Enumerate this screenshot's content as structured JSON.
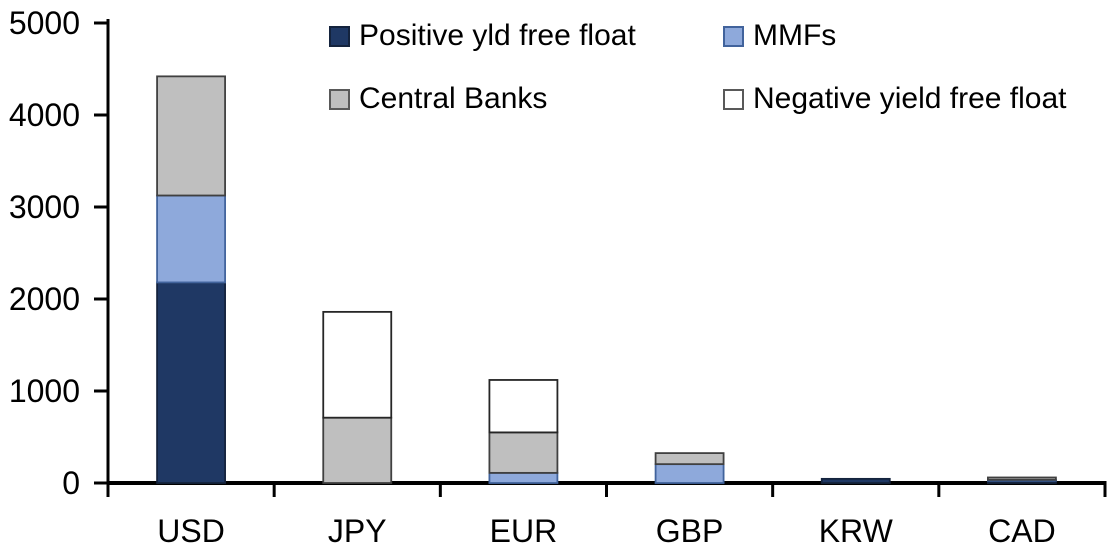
{
  "chart_data": {
    "type": "bar",
    "stacked": true,
    "categories": [
      "USD",
      "JPY",
      "EUR",
      "GBP",
      "KRW",
      "CAD"
    ],
    "series": [
      {
        "name": "Positive yld free float",
        "color": "#1F3864",
        "border": "#14233D",
        "values": [
          2180,
          0,
          0,
          0,
          45,
          25
        ]
      },
      {
        "name": "MMFs",
        "color": "#8EA9DB",
        "border": "#41639C",
        "values": [
          945,
          0,
          110,
          205,
          0,
          10
        ]
      },
      {
        "name": "Central Banks",
        "color": "#BFBFBF",
        "border": "#404040",
        "values": [
          1295,
          710,
          440,
          120,
          0,
          25
        ]
      },
      {
        "name": "Negative yield free float",
        "color": "#FFFFFF",
        "border": "#262626",
        "values": [
          0,
          1150,
          570,
          0,
          0,
          0
        ]
      }
    ],
    "totals": {
      "USD": 4420,
      "JPY": 1860,
      "EUR": 1120,
      "GBP": 325,
      "KRW": 45,
      "CAD": 60
    },
    "ylim": [
      0,
      5000
    ],
    "y_ticks": [
      0,
      1000,
      2000,
      3000,
      4000,
      5000
    ],
    "grid": false,
    "legend_position": "top-two-column",
    "axis_color": "#000000"
  }
}
